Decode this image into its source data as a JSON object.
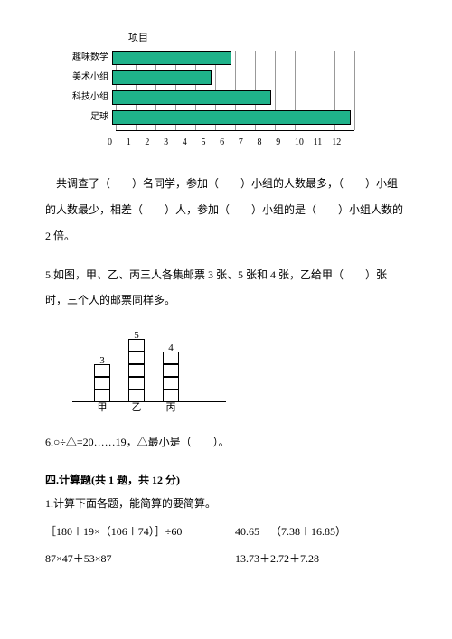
{
  "barChart": {
    "title": "项目",
    "xMax": 12,
    "cellWidth": 22,
    "barColor": "#1fb28a",
    "categories": [
      {
        "label": "趣味数学",
        "value": 6
      },
      {
        "label": "美术小组",
        "value": 5
      },
      {
        "label": "科技小组",
        "value": 8
      },
      {
        "label": "足球",
        "value": 12
      }
    ],
    "xTicks": [
      "0",
      "1",
      "2",
      "3",
      "4",
      "5",
      "6",
      "7",
      "8",
      "9",
      "10",
      "11",
      "12"
    ]
  },
  "q4_text": "一共调查了（　　）名同学，参加（　　）小组的人数最多，（　　）小组的人数最少，相差（　　）人，参加（　　）小组的是（　　）小组人数的 2 倍。",
  "q5_text": "5.如图，甲、乙、丙三人各集邮票 3 张、5 张和 4 张，乙给甲（　　）张时，三个人的邮票同样多。",
  "stamp": {
    "cols": [
      {
        "name": "甲",
        "count": 3,
        "x": 24
      },
      {
        "name": "乙",
        "count": 5,
        "x": 62
      },
      {
        "name": "丙",
        "count": 4,
        "x": 100
      }
    ]
  },
  "q6_text": "6.○÷△=20……19，△最小是（　　）。",
  "section4_head": "四.计算题(共 1 题，共 12 分)",
  "calc_intro": "1.计算下面各题，能简算的要简算。",
  "calc": [
    {
      "left": "［180＋19×（106＋74）］÷60",
      "right": "40.65－（7.38＋16.85）"
    },
    {
      "left": "87×47＋53×87",
      "right": "13.73＋2.72＋7.28"
    }
  ]
}
